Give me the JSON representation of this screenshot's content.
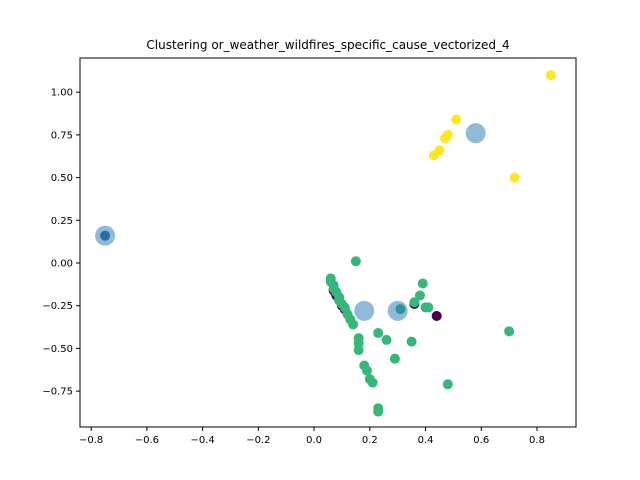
{
  "chart_data": {
    "type": "scatter",
    "title": "Clustering or_weather_wildfires_specific_cause_vectorized_4",
    "xlabel": "",
    "ylabel": "",
    "xlim": [
      -0.84,
      0.94
    ],
    "ylim": [
      -0.96,
      1.2
    ],
    "xticks": [
      {
        "value": -0.8,
        "label": "−0.8"
      },
      {
        "value": -0.6,
        "label": "−0.6"
      },
      {
        "value": -0.4,
        "label": "−0.4"
      },
      {
        "value": -0.2,
        "label": "−0.2"
      },
      {
        "value": 0.0,
        "label": "0.0"
      },
      {
        "value": 0.2,
        "label": "0.2"
      },
      {
        "value": 0.4,
        "label": "0.4"
      },
      {
        "value": 0.6,
        "label": "0.6"
      },
      {
        "value": 0.8,
        "label": "0.8"
      }
    ],
    "yticks": [
      {
        "value": -0.75,
        "label": "−0.75"
      },
      {
        "value": -0.5,
        "label": "−0.50"
      },
      {
        "value": -0.25,
        "label": "−0.25"
      },
      {
        "value": 0.0,
        "label": "0.00"
      },
      {
        "value": 0.25,
        "label": "0.25"
      },
      {
        "value": 0.5,
        "label": "0.50"
      },
      {
        "value": 0.75,
        "label": "0.75"
      },
      {
        "value": 1.0,
        "label": "1.00"
      }
    ],
    "grid": false,
    "legend": "none",
    "series": [
      {
        "color": "#440154",
        "points": [
          [
            0.07,
            -0.16
          ],
          [
            0.08,
            -0.19
          ],
          [
            0.1,
            -0.25
          ],
          [
            0.11,
            -0.27
          ],
          [
            0.36,
            -0.24
          ],
          [
            0.44,
            -0.31
          ]
        ]
      },
      {
        "color": "#31688e",
        "points": [
          [
            -0.75,
            0.16
          ]
        ]
      },
      {
        "color": "#35b779",
        "points": [
          [
            0.06,
            -0.09
          ],
          [
            0.06,
            -0.11
          ],
          [
            0.07,
            -0.13
          ],
          [
            0.07,
            -0.15
          ],
          [
            0.08,
            -0.17
          ],
          [
            0.09,
            -0.2
          ],
          [
            0.09,
            -0.22
          ],
          [
            0.1,
            -0.24
          ],
          [
            0.11,
            -0.26
          ],
          [
            0.12,
            -0.3
          ],
          [
            0.13,
            -0.33
          ],
          [
            0.14,
            -0.36
          ],
          [
            0.15,
            0.01
          ],
          [
            0.16,
            -0.44
          ],
          [
            0.16,
            -0.47
          ],
          [
            0.16,
            -0.51
          ],
          [
            0.18,
            -0.6
          ],
          [
            0.19,
            -0.63
          ],
          [
            0.2,
            -0.68
          ],
          [
            0.21,
            -0.7
          ],
          [
            0.23,
            -0.85
          ],
          [
            0.23,
            -0.87
          ],
          [
            0.23,
            -0.41
          ],
          [
            0.26,
            -0.45
          ],
          [
            0.29,
            -0.56
          ],
          [
            0.31,
            -0.27
          ],
          [
            0.35,
            -0.46
          ],
          [
            0.36,
            -0.23
          ],
          [
            0.38,
            -0.19
          ],
          [
            0.39,
            -0.12
          ],
          [
            0.4,
            -0.26
          ],
          [
            0.41,
            -0.26
          ],
          [
            0.48,
            -0.71
          ],
          [
            0.7,
            -0.4
          ]
        ]
      },
      {
        "color": "#fde725",
        "points": [
          [
            0.43,
            0.63
          ],
          [
            0.45,
            0.66
          ],
          [
            0.47,
            0.73
          ],
          [
            0.48,
            0.75
          ],
          [
            0.51,
            0.84
          ],
          [
            0.72,
            0.5
          ],
          [
            0.85,
            1.1
          ]
        ]
      }
    ],
    "centroids": {
      "color": "#1f77b4",
      "opacity": 0.5,
      "points": [
        [
          -0.75,
          0.16
        ],
        [
          0.18,
          -0.28
        ],
        [
          0.3,
          -0.28
        ],
        [
          0.58,
          0.76
        ]
      ]
    }
  }
}
